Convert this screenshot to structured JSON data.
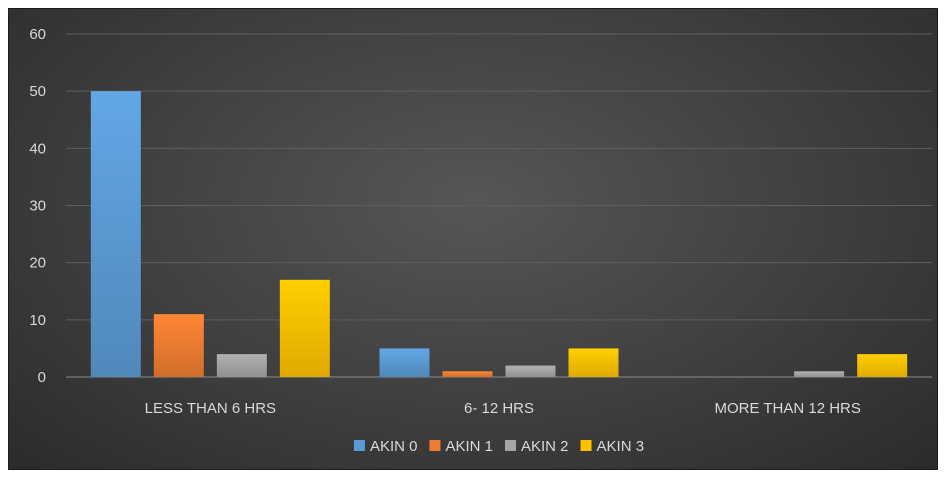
{
  "chart_data": {
    "type": "bar",
    "categories": [
      "LESS THAN 6 HRS",
      "6- 12 HRS",
      "MORE THAN 12 HRS"
    ],
    "series": [
      {
        "name": "AKIN 0",
        "values": [
          50,
          5,
          0
        ],
        "color": "#5b9bd5"
      },
      {
        "name": "AKIN 1",
        "values": [
          11,
          1,
          0
        ],
        "color": "#ed7d31"
      },
      {
        "name": "AKIN 2",
        "values": [
          4,
          2,
          1
        ],
        "color": "#a5a5a5"
      },
      {
        "name": "AKIN 3",
        "values": [
          17,
          5,
          4
        ],
        "color": "#ffc000"
      }
    ],
    "ylim": [
      0,
      60
    ],
    "yticks": [
      0,
      10,
      20,
      30,
      40,
      50,
      60
    ],
    "grid": true,
    "legend": "bottom",
    "title": "",
    "xlabel": "",
    "ylabel": ""
  }
}
